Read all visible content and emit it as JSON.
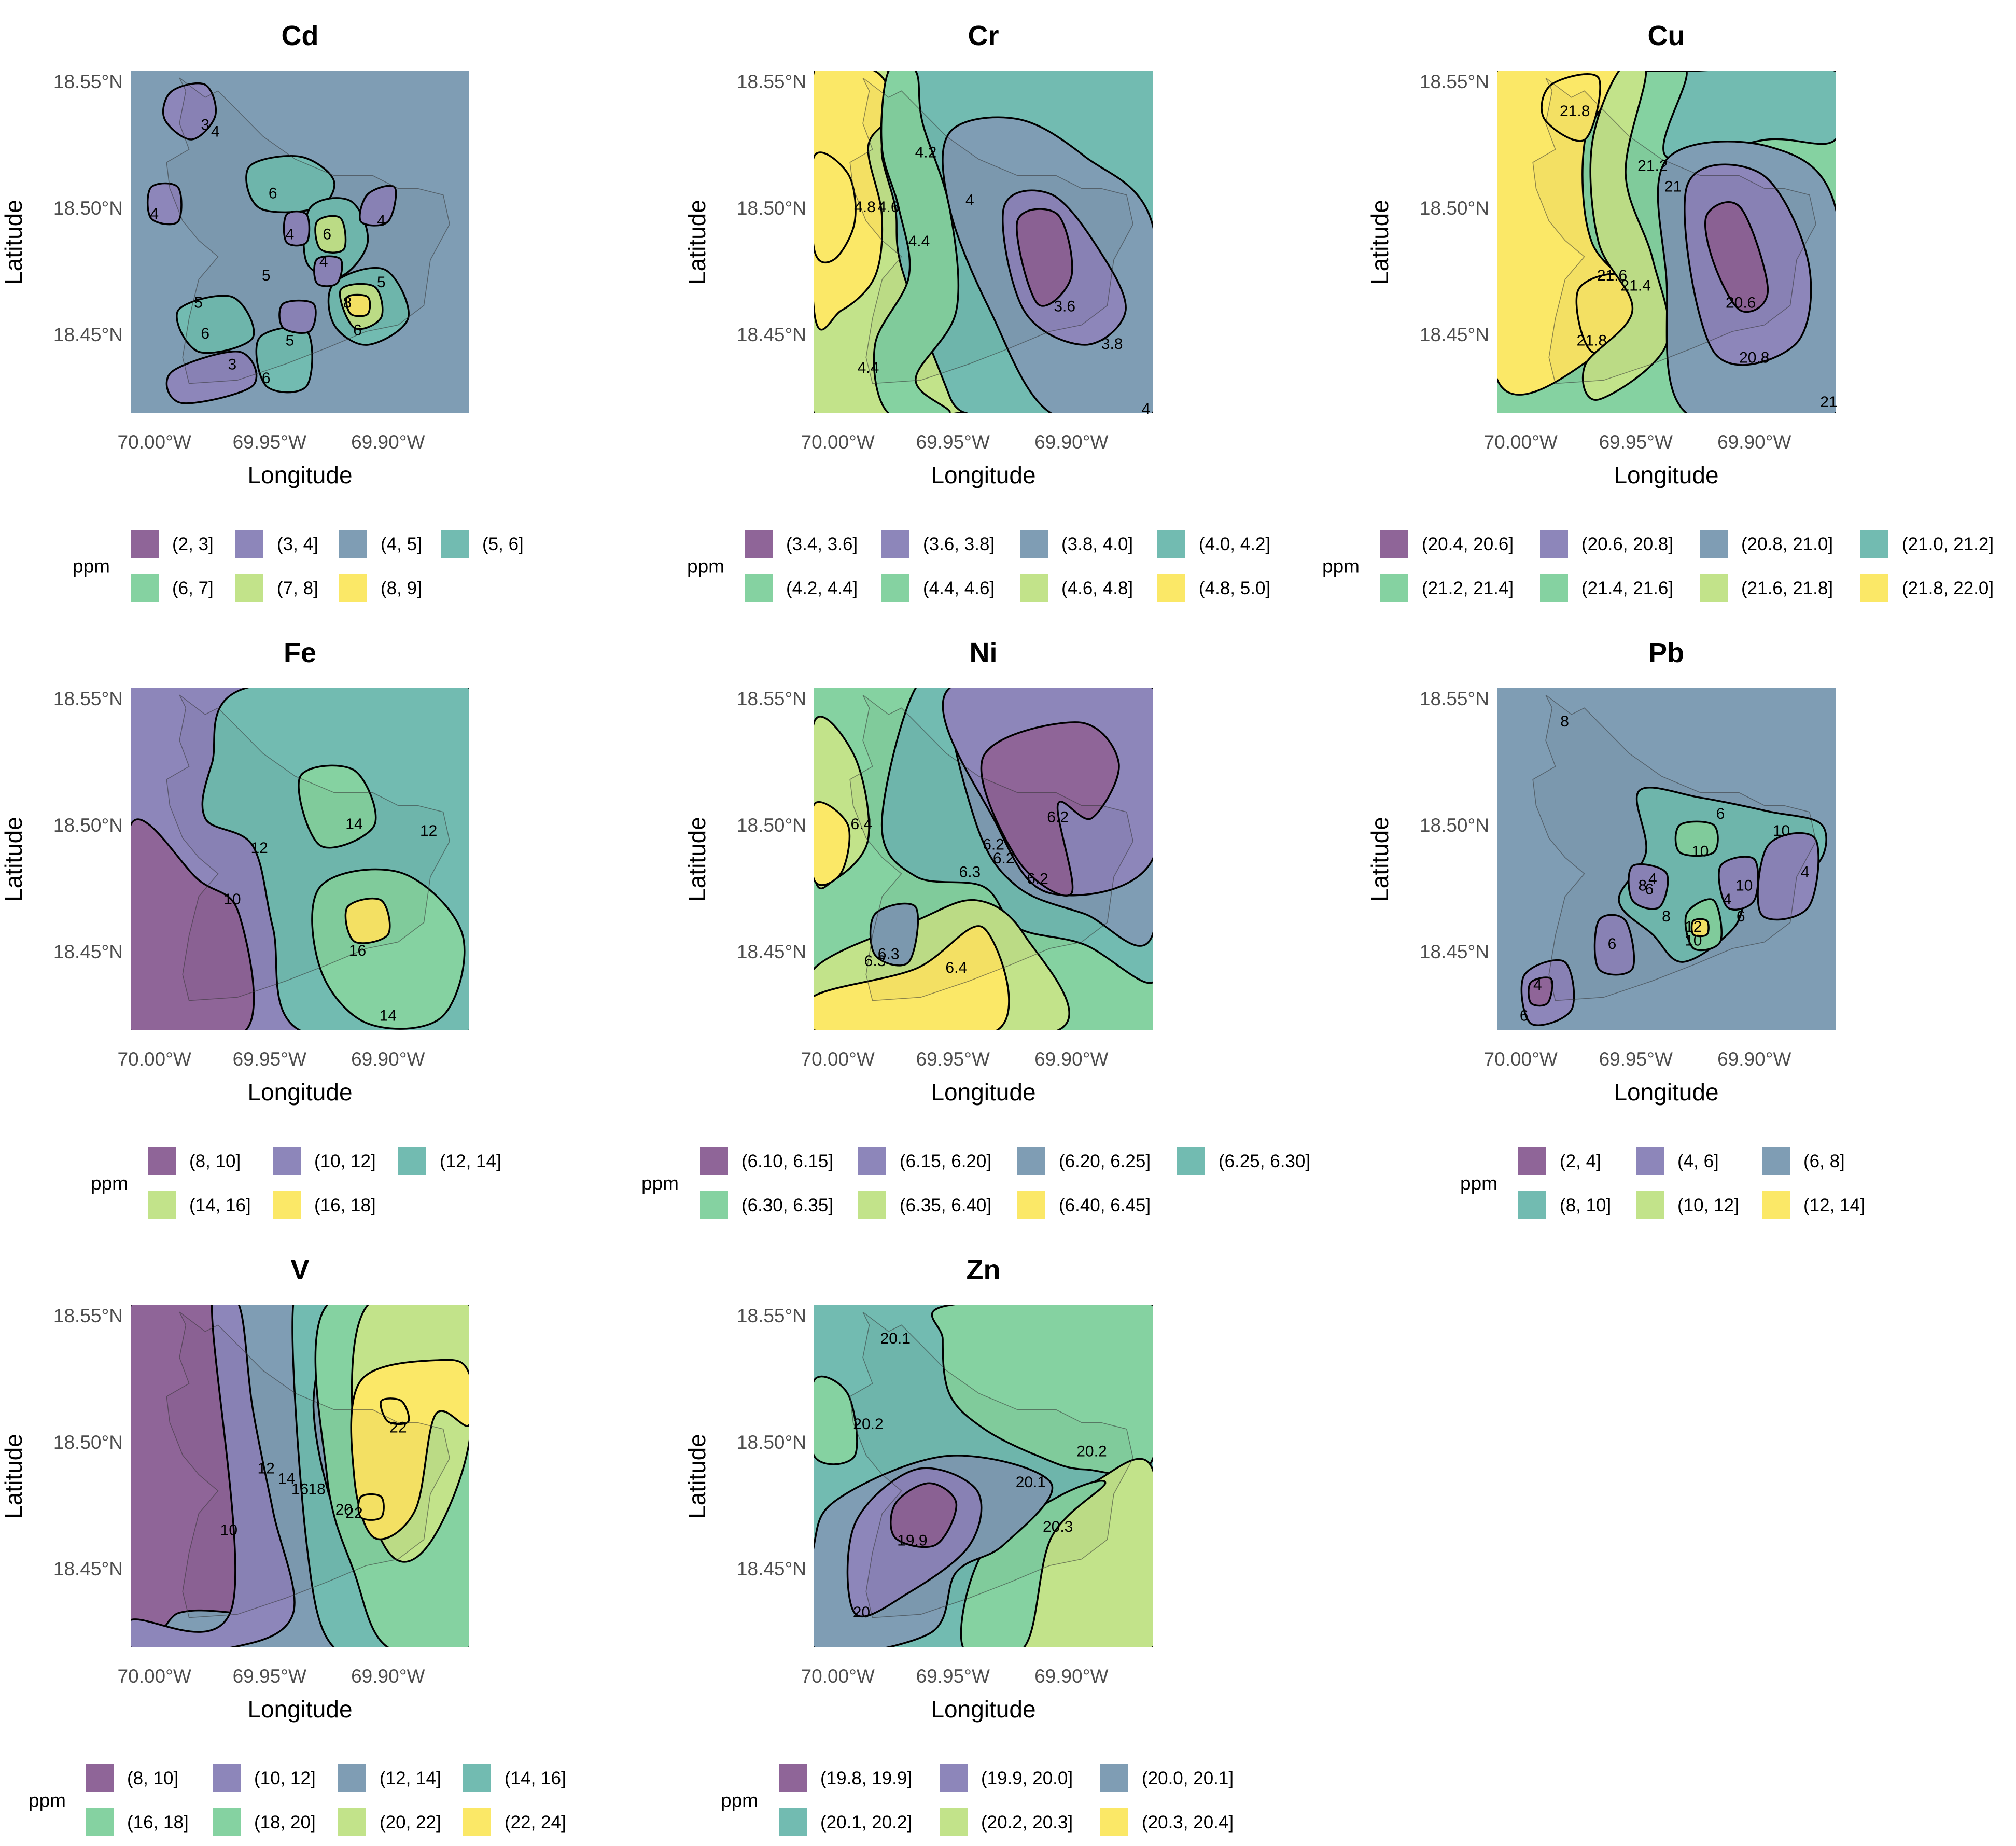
{
  "chart_data": {
    "type": "contour-map",
    "layout": "faceted small multiples",
    "grid": true,
    "x_ticks": [
      "70.00°W",
      "69.95°W",
      "69.90°W"
    ],
    "y_ticks": [
      "18.55°N",
      "18.50°N",
      "18.45°N"
    ],
    "xlabel": "Longitude",
    "ylabel": "Latitude",
    "legend_title": "ppm",
    "legend_position": "bottom",
    "colors": [
      "#8f6598",
      "#8d86ba",
      "#7f9db4",
      "#72bbb1",
      "#85d2a1",
      "#c2e38a",
      "#fbe867",
      "#fbe867"
    ],
    "panels": [
      {
        "element": "Cd",
        "legend": [
          "(2, 3]",
          "(3, 4]",
          "(4, 5]",
          "(5, 6]",
          "(6, 7]",
          "(7, 8]",
          "(8, 9]"
        ],
        "contour_labels": [
          "3",
          "4",
          "4",
          "4",
          "4",
          "5",
          "5",
          "5",
          "5",
          "6",
          "6",
          "6",
          "6",
          "6",
          "8",
          "4",
          "3"
        ]
      },
      {
        "element": "Cr",
        "legend": [
          "(3.4, 3.6]",
          "(3.6, 3.8]",
          "(3.8, 4.0]",
          "(4.0, 4.2]",
          "(4.2, 4.4]",
          "(4.4, 4.6]",
          "(4.6, 4.8]",
          "(4.8, 5.0]"
        ],
        "contour_labels": [
          "4.8",
          "4.6",
          "4.2",
          "4",
          "4.4",
          "3.6",
          "3.8",
          "4.4",
          "4"
        ]
      },
      {
        "element": "Cu",
        "legend": [
          "(20.4, 20.6]",
          "(20.6, 20.8]",
          "(20.8, 21.0]",
          "(21.0, 21.2]",
          "(21.2, 21.4]",
          "(21.4, 21.6]",
          "(21.6, 21.8]",
          "(21.8, 22.0]"
        ],
        "contour_labels": [
          "21.8",
          "21.2",
          "21",
          "21.6",
          "21.4",
          "20.6",
          "21.8",
          "20.8",
          "21"
        ]
      },
      {
        "element": "Fe",
        "legend": [
          "(8, 10]",
          "(10, 12]",
          "(12, 14]",
          "(14, 16]",
          "(16, 18]"
        ],
        "contour_labels": [
          "12",
          "14",
          "12",
          "10",
          "16",
          "14"
        ]
      },
      {
        "element": "Ni",
        "legend": [
          "(6.10, 6.15]",
          "(6.15, 6.20]",
          "(6.20, 6.25]",
          "(6.25, 6.30]",
          "(6.30, 6.35]",
          "(6.35, 6.40]",
          "(6.40, 6.45]"
        ],
        "contour_labels": [
          "6.4",
          "6.2",
          "6.2",
          "6.2",
          "6.3",
          "6.2",
          "6.3",
          "6.3",
          "6.4"
        ]
      },
      {
        "element": "Pb",
        "legend": [
          "(2, 4]",
          "(4, 6]",
          "(6, 8]",
          "(8, 10]",
          "(10, 12]",
          "(12, 14]"
        ],
        "contour_labels": [
          "8",
          "6",
          "10",
          "10",
          "10",
          "4",
          "8",
          "6",
          "4",
          "8",
          "12",
          "10",
          "4",
          "6",
          "6",
          "4",
          "6"
        ]
      },
      {
        "element": "V",
        "legend": [
          "(8, 10]",
          "(10, 12]",
          "(12, 14]",
          "(14, 16]",
          "(16, 18]",
          "(18, 20]",
          "(20, 22]",
          "(22, 24]"
        ],
        "contour_labels": [
          "22",
          "12",
          "14",
          "16",
          "18",
          "20",
          "22",
          "10"
        ]
      },
      {
        "element": "Zn",
        "legend": [
          "(19.8, 19.9]",
          "(19.9, 20.0]",
          "(20.0, 20.1]",
          "(20.1, 20.2]",
          "(20.2, 20.3]",
          "(20.3, 20.4]"
        ],
        "contour_labels": [
          "20.1",
          "20.2",
          "20.2",
          "20.1",
          "20.3",
          "19.9",
          "20"
        ]
      }
    ]
  }
}
